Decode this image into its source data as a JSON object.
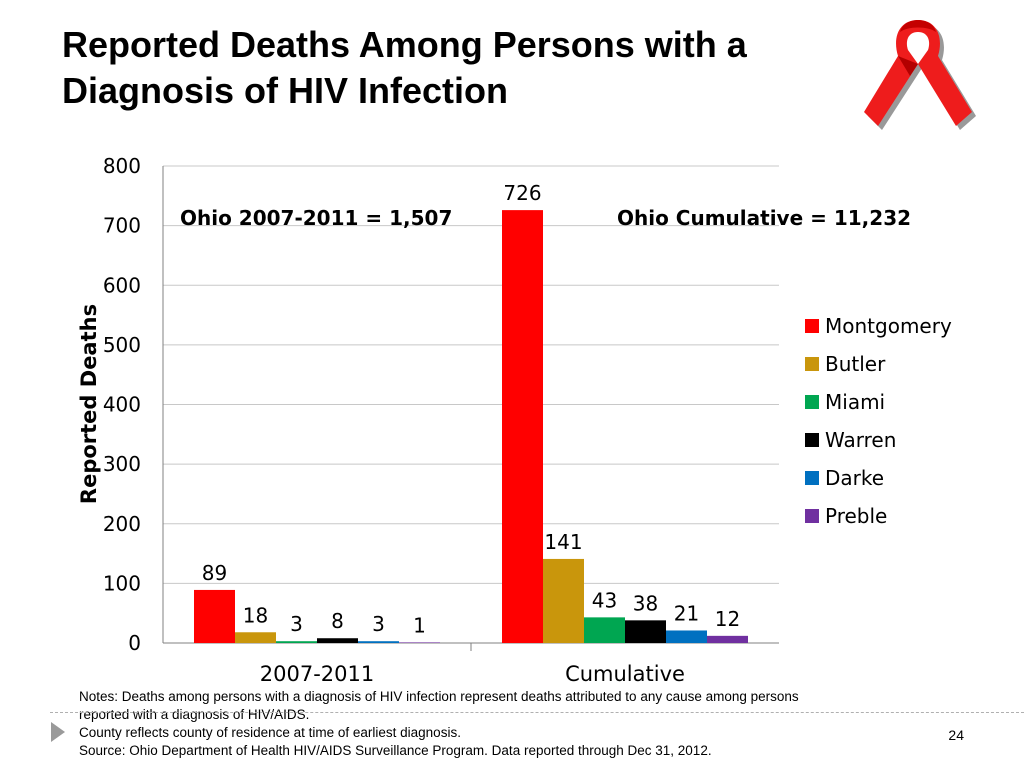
{
  "slide": {
    "title_line1": "Reported Deaths Among Persons with a",
    "title_line2": "Diagnosis of HIV Infection",
    "page_number": "24",
    "notes": [
      "Notes:  Deaths among persons with a diagnosis of HIV infection represent deaths attributed to any cause among persons",
      "reported with a diagnosis of HIV/AIDS.",
      "County reflects county of residence at time of earliest diagnosis.",
      "Source:  Ohio Department of Health HIV/AIDS Surveillance Program.  Data reported through Dec 31, 2012."
    ]
  },
  "icons": {
    "ribbon": "red-ribbon-icon",
    "bullet": "triangle-arrow-icon"
  },
  "chart_data": {
    "type": "bar",
    "ylabel": "Reported Deaths",
    "xlabel": "",
    "ylim": [
      0,
      800
    ],
    "yticks": [
      0,
      100,
      200,
      300,
      400,
      500,
      600,
      700,
      800
    ],
    "grid": true,
    "legend_position": "right",
    "categories": [
      "2007-2011",
      "Cumulative"
    ],
    "annotations": [
      "Ohio 2007-2011 = 1,507",
      "Ohio Cumulative = 11,232"
    ],
    "series": [
      {
        "name": "Montgomery",
        "color": "#ff0000",
        "values": [
          89,
          726
        ]
      },
      {
        "name": "Butler",
        "color": "#c9960c",
        "values": [
          18,
          141
        ]
      },
      {
        "name": "Miami",
        "color": "#00a651",
        "values": [
          3,
          43
        ]
      },
      {
        "name": "Warren",
        "color": "#000000",
        "values": [
          8,
          38
        ]
      },
      {
        "name": "Darke",
        "color": "#0070c0",
        "values": [
          3,
          21
        ]
      },
      {
        "name": "Preble",
        "color": "#7030a0",
        "values": [
          1,
          12
        ]
      }
    ]
  }
}
